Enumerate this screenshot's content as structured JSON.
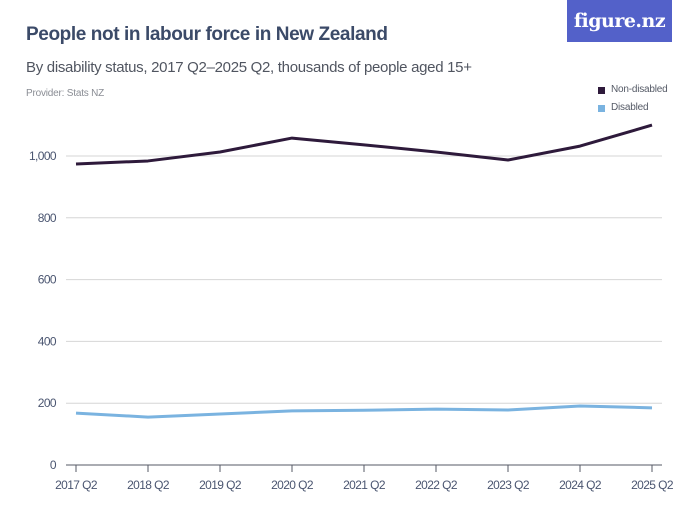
{
  "header": {
    "title": "People not in labour force in New Zealand",
    "subtitle": "By disability status, 2017 Q2–2025 Q2, thousands of people aged 15+",
    "provider": "Provider: Stats NZ"
  },
  "logo": {
    "text": "figure.nz",
    "bg_color": "#5361c9"
  },
  "legend": {
    "items": [
      {
        "label": "Non-disabled",
        "color": "#2e1a3b"
      },
      {
        "label": "Disabled",
        "color": "#7ab3e0"
      }
    ]
  },
  "chart_data": {
    "type": "line",
    "title": "People not in labour force in New Zealand",
    "subtitle": "By disability status, 2017 Q2–2025 Q2, thousands of people aged 15+",
    "xlabel": "",
    "ylabel": "",
    "categories": [
      "2017 Q2",
      "2018 Q2",
      "2019 Q2",
      "2020 Q2",
      "2021 Q2",
      "2022 Q2",
      "2023 Q2",
      "2024 Q2",
      "2025 Q2"
    ],
    "series": [
      {
        "name": "Non-disabled",
        "color": "#2e1a3b",
        "values": [
          974,
          984,
          1013,
          1058,
          1036,
          1013,
          987,
          1032,
          1100
        ]
      },
      {
        "name": "Disabled",
        "color": "#7ab3e0",
        "values": [
          168,
          155,
          165,
          175,
          177,
          181,
          178,
          191,
          185
        ]
      }
    ],
    "ylim": [
      0,
      1100
    ],
    "yticks": [
      0,
      200,
      400,
      600,
      800,
      1000
    ],
    "ytick_labels": [
      "0",
      "200",
      "400",
      "600",
      "800",
      "1,000"
    ],
    "grid": true,
    "legend_position": "top-right"
  }
}
